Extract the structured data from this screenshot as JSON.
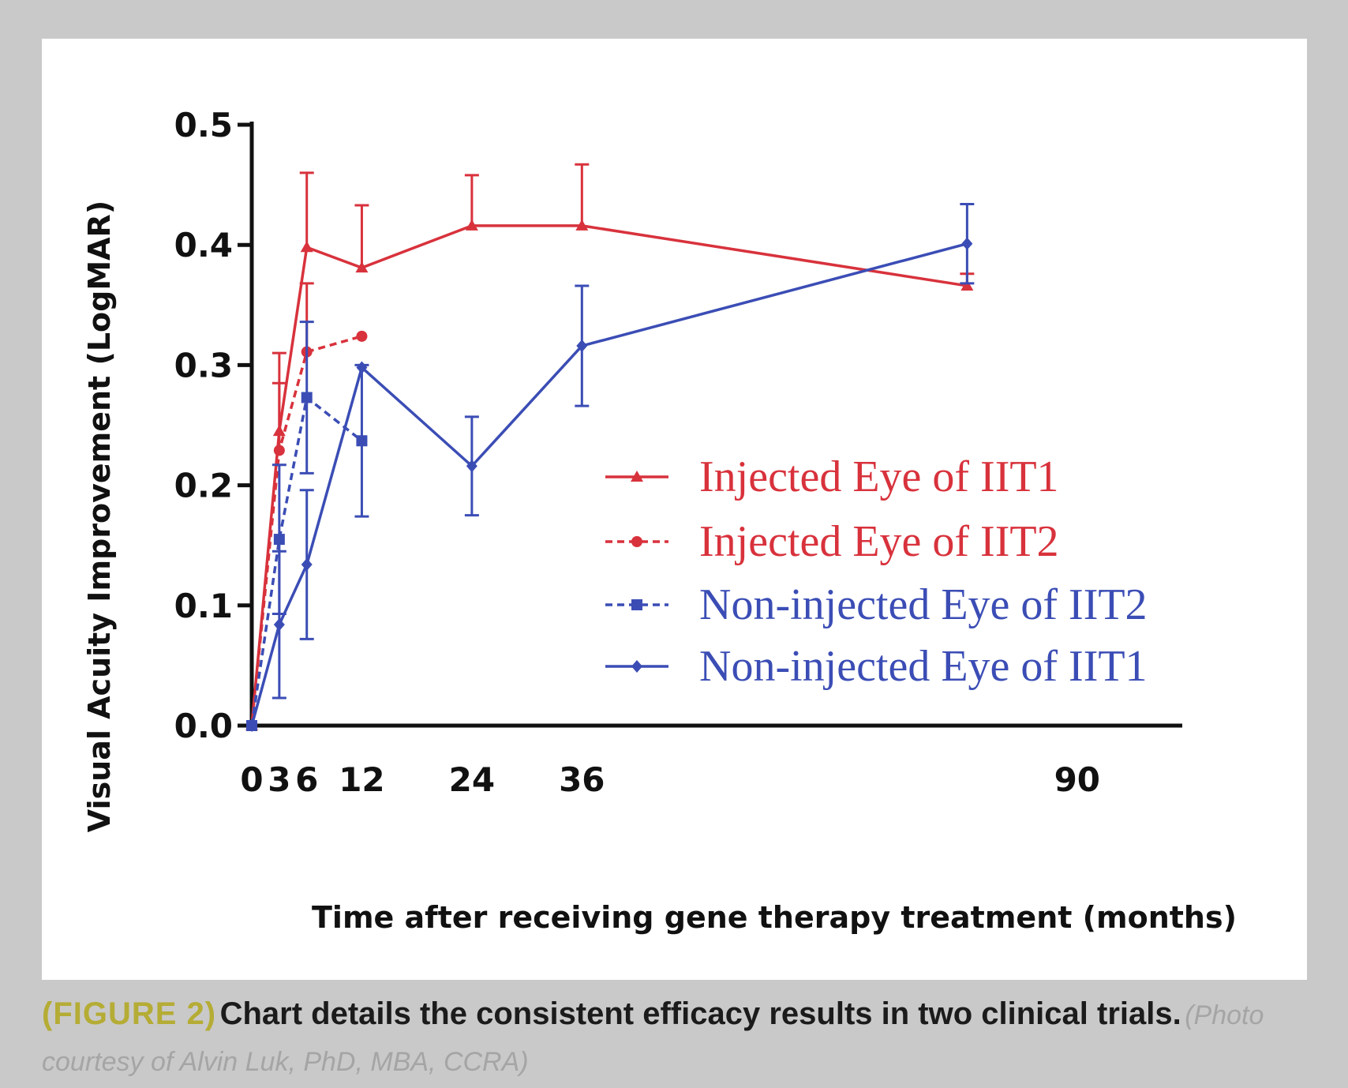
{
  "caption": {
    "label": "(FIGURE 2)",
    "text": "Chart details the consistent efficacy results in two clinical trials.",
    "credit": "(Photo courtesy of Alvin Luk, PhD, MBA, CCRA)"
  },
  "chart_data": {
    "type": "line",
    "title": "",
    "xlabel": "Time after receiving gene therapy treatment (months)",
    "ylabel": "Visual Acuity Improvement (LogMAR)",
    "ylim": [
      0,
      0.5
    ],
    "x_tick_values": [
      0,
      3,
      6,
      12,
      24,
      36,
      90
    ],
    "x_tick_labels": [
      "0",
      "3",
      "6",
      "12",
      "24",
      "36",
      "90"
    ],
    "y_tick_values": [
      0.0,
      0.1,
      0.2,
      0.3,
      0.4,
      0.5
    ],
    "y_tick_labels": [
      "0.0",
      "0.1",
      "0.2",
      "0.3",
      "0.4",
      "0.5"
    ],
    "legend_position": "center-right",
    "series": [
      {
        "name": "Injected Eye of IIT1",
        "color": "#d8323c",
        "style": "solid",
        "marker": "triangle",
        "x": [
          0,
          3,
          6,
          12,
          24,
          36,
          78
        ],
        "values": [
          0.0,
          0.245,
          0.398,
          0.381,
          0.416,
          0.416,
          0.366
        ],
        "errors": [
          0.0,
          0.065,
          0.062,
          0.052,
          0.042,
          0.051,
          0.01
        ]
      },
      {
        "name": "Injected Eye of IIT2",
        "color": "#d8323c",
        "style": "dashed",
        "marker": "circle",
        "x": [
          0,
          3,
          6,
          12
        ],
        "values": [
          0.0,
          0.229,
          0.311,
          0.324
        ],
        "errors": [
          0.0,
          0.056,
          0.057,
          0.0
        ]
      },
      {
        "name": "Non-injected Eye of IIT2",
        "color": "#3b4db5",
        "style": "dashed",
        "marker": "square",
        "x": [
          0,
          3,
          6,
          12
        ],
        "values": [
          0.0,
          0.155,
          0.273,
          0.237
        ],
        "errors": [
          0.0,
          0.062,
          0.063,
          0.063
        ]
      },
      {
        "name": "Non-injected Eye of IIT1",
        "color": "#3b4db5",
        "style": "solid",
        "marker": "diamond",
        "x": [
          0,
          3,
          6,
          12,
          24,
          36,
          78
        ],
        "values": [
          0.0,
          0.084,
          0.134,
          0.298,
          0.216,
          0.316,
          0.401
        ],
        "errors": [
          0.0,
          0.061,
          0.062,
          0.0,
          0.041,
          0.05,
          0.033
        ]
      }
    ]
  }
}
